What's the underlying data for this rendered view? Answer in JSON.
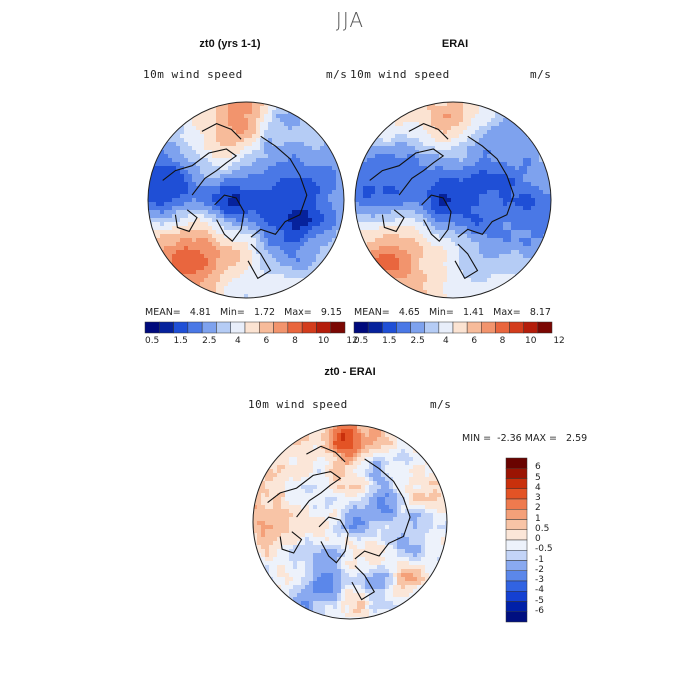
{
  "season": "JJA",
  "colors": {
    "abs_scale": [
      "#000a7c",
      "#06229c",
      "#1f4fd6",
      "#4a78e6",
      "#7ea2ee",
      "#b5ccf5",
      "#e8eefa",
      "#fbe3d2",
      "#f7bb9a",
      "#f2946d",
      "#e9663e",
      "#d33c1c",
      "#b41d0b",
      "#7b0703"
    ],
    "diff_scale": [
      "#000f80",
      "#0020a8",
      "#1440d2",
      "#3163e2",
      "#5b87ea",
      "#89a9f0",
      "#c3d4f7",
      "#edf2fb",
      "#fbe6d8",
      "#f8c4a6",
      "#f4a079",
      "#ee7a4e",
      "#e35325",
      "#c9300c",
      "#9b1403",
      "#6a0300"
    ]
  },
  "panels": [
    {
      "id": "model",
      "title": "zt0 (yrs 1-1)",
      "variable": "10m wind speed",
      "units": "m/s",
      "stats": {
        "mean_label": "MEAN=",
        "mean": "4.81",
        "min_label": "Min=",
        "min": "1.72",
        "max_label": "Max=",
        "max": "9.15"
      },
      "colorbar_ticks": [
        "0.5",
        "1.5",
        "2.5",
        "4",
        "6",
        "8",
        "10",
        "12"
      ]
    },
    {
      "id": "obs",
      "title": "ERAI",
      "variable": "10m wind speed",
      "units": "m/s",
      "stats": {
        "mean_label": "MEAN=",
        "mean": "4.65",
        "min_label": "Min=",
        "min": "1.41",
        "max_label": "Max=",
        "max": "8.17"
      },
      "colorbar_ticks": [
        "0.5",
        "1.5",
        "2.5",
        "4",
        "6",
        "8",
        "10",
        "12"
      ]
    },
    {
      "id": "diff",
      "title": "zt0 - ERAI",
      "variable": "10m wind speed",
      "units": "m/s",
      "stats": {
        "min_label": "MIN =",
        "min": "-2.36",
        "max_label": "MAX =",
        "max": "2.59"
      },
      "colorbar_ticks": [
        "6",
        "5",
        "4",
        "3",
        "2",
        "1",
        "0.5",
        "0",
        "-0.5",
        "-1",
        "-2",
        "-3",
        "-4",
        "-5",
        "-6"
      ]
    }
  ]
}
